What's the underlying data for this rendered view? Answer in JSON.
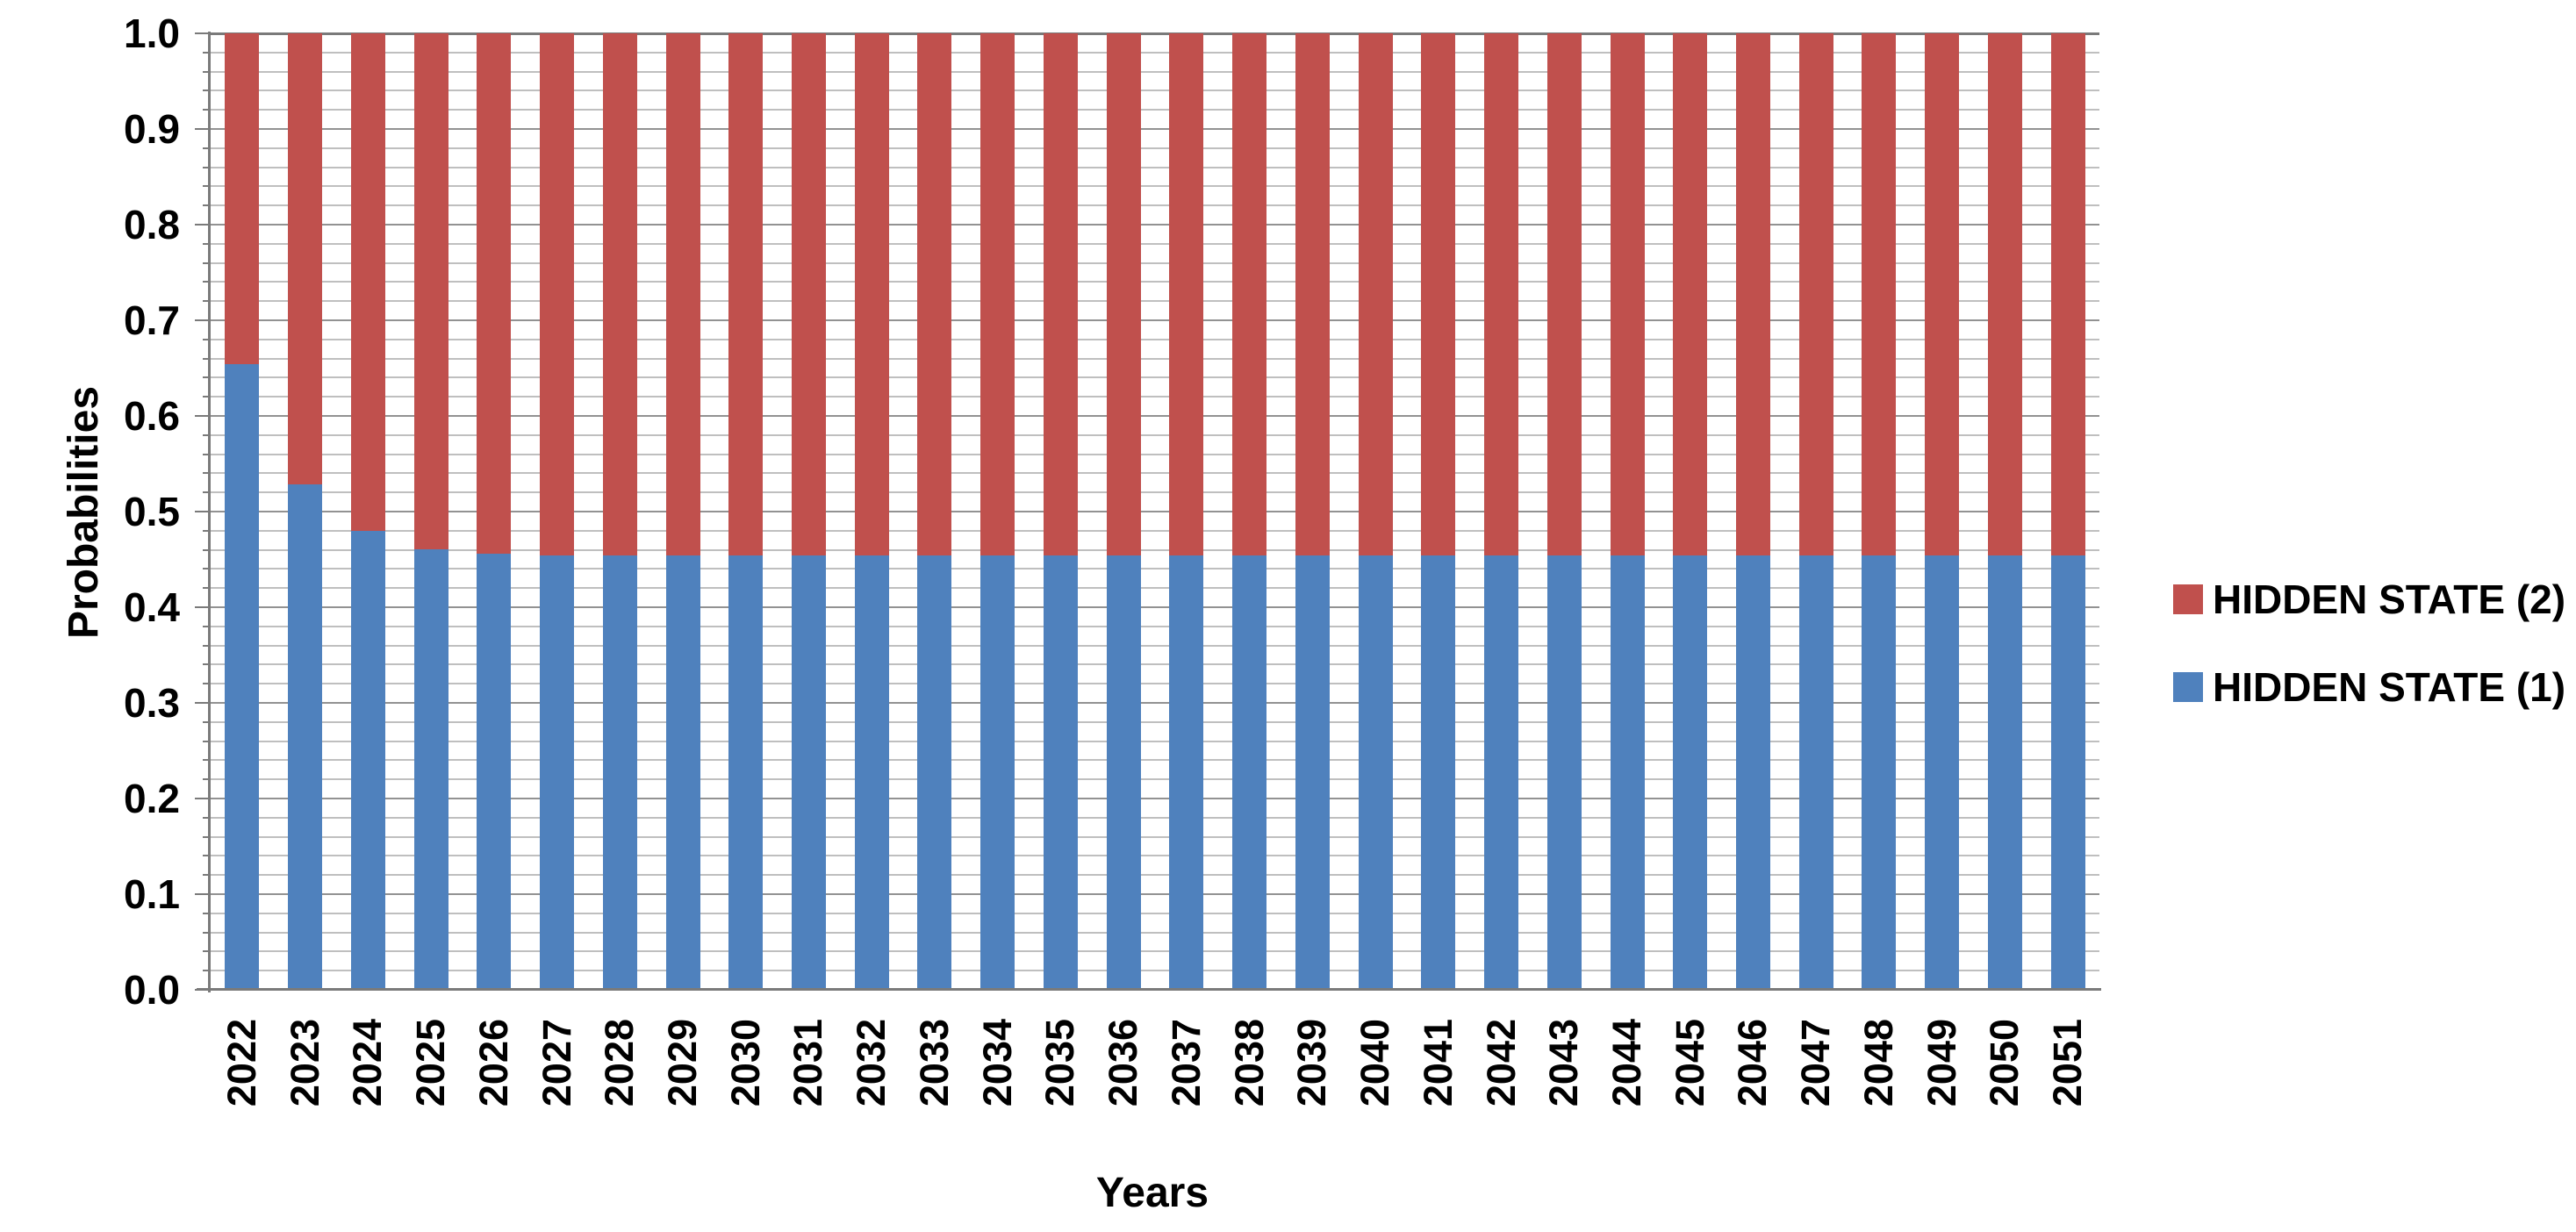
{
  "chart_data": {
    "type": "bar",
    "stacked": true,
    "title": "",
    "xlabel": "Years",
    "ylabel": "Probabilities",
    "ylim": [
      0.0,
      1.0
    ],
    "y_major_step": 0.1,
    "y_minor_step": 0.02,
    "y_tick_labels": [
      "0.0",
      "0.1",
      "0.2",
      "0.3",
      "0.4",
      "0.5",
      "0.6",
      "0.7",
      "0.8",
      "0.9",
      "1.0"
    ],
    "grid": "horizontal major and minor gridlines, no vertical gridlines",
    "legend_position": "right",
    "categories": [
      "2022",
      "2023",
      "2024",
      "2025",
      "2026",
      "2027",
      "2028",
      "2029",
      "2030",
      "2031",
      "2032",
      "2033",
      "2034",
      "2035",
      "2036",
      "2037",
      "2038",
      "2039",
      "2040",
      "2041",
      "2042",
      "2043",
      "2044",
      "2045",
      "2046",
      "2047",
      "2048",
      "2049",
      "2050",
      "2051"
    ],
    "series": [
      {
        "name": "HIDDEN STATE (1)",
        "color": "#4F81BD",
        "values": [
          0.654,
          0.528,
          0.48,
          0.461,
          0.456,
          0.454,
          0.454,
          0.454,
          0.454,
          0.454,
          0.454,
          0.454,
          0.454,
          0.454,
          0.454,
          0.454,
          0.454,
          0.454,
          0.454,
          0.454,
          0.454,
          0.454,
          0.454,
          0.454,
          0.454,
          0.454,
          0.454,
          0.454,
          0.454,
          0.454
        ]
      },
      {
        "name": "HIDDEN STATE (2)",
        "color": "#C0504D",
        "values": [
          0.346,
          0.472,
          0.52,
          0.539,
          0.544,
          0.546,
          0.546,
          0.546,
          0.546,
          0.546,
          0.546,
          0.546,
          0.546,
          0.546,
          0.546,
          0.546,
          0.546,
          0.546,
          0.546,
          0.546,
          0.546,
          0.546,
          0.546,
          0.546,
          0.546,
          0.546,
          0.546,
          0.546,
          0.546,
          0.546
        ]
      }
    ],
    "legend": [
      {
        "label": "HIDDEN STATE (2)",
        "color": "#C0504D"
      },
      {
        "label": "HIDDEN STATE (1)",
        "color": "#4F81BD"
      }
    ]
  },
  "colors": {
    "background": "#FFFFFF",
    "axis": "#7A7A7A",
    "grid_major": "#929292",
    "grid_minor": "#BFBFBF",
    "text": "#000000"
  }
}
